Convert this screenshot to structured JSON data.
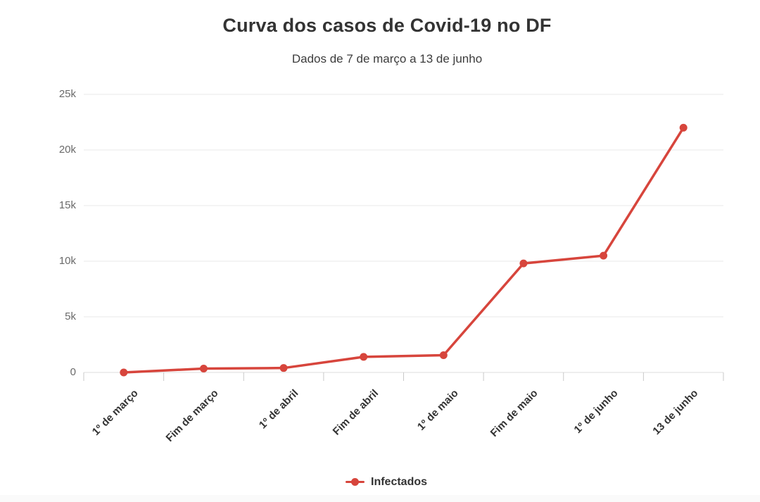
{
  "chart_data": {
    "type": "line",
    "title": "Curva dos casos de Covid-19 no DF",
    "subtitle": "Dados de 7 de março a 13 de junho",
    "categories": [
      "1º de março",
      "Fim de março",
      "1º de abril",
      "Fim de abril",
      "1º de maio",
      "Fim de maio",
      "1º de junho",
      "13 de junho"
    ],
    "series": [
      {
        "name": "Infectados",
        "color": "#d7453c",
        "values": [
          1,
          350,
          400,
          1400,
          1550,
          9800,
          10500,
          22000
        ]
      }
    ],
    "xlabel": "",
    "ylabel": "",
    "ylim": [
      0,
      25000
    ],
    "y_ticks": [
      {
        "value": 25000,
        "label": "25k"
      },
      {
        "value": 20000,
        "label": "20k"
      },
      {
        "value": 15000,
        "label": "15k"
      },
      {
        "value": 10000,
        "label": "10k"
      },
      {
        "value": 5000,
        "label": "5k"
      },
      {
        "value": 0,
        "label": "0"
      }
    ],
    "grid": "horizontal-only",
    "legend_position": "bottom",
    "colors": {
      "line": "#d7453c",
      "grid": "#e9e9e9",
      "zero_line": "#dedede",
      "axis_tick": "#c9c9c9",
      "title_text": "#333333",
      "y_label_text": "#6a6a6a",
      "x_label_text": "#333333"
    }
  }
}
